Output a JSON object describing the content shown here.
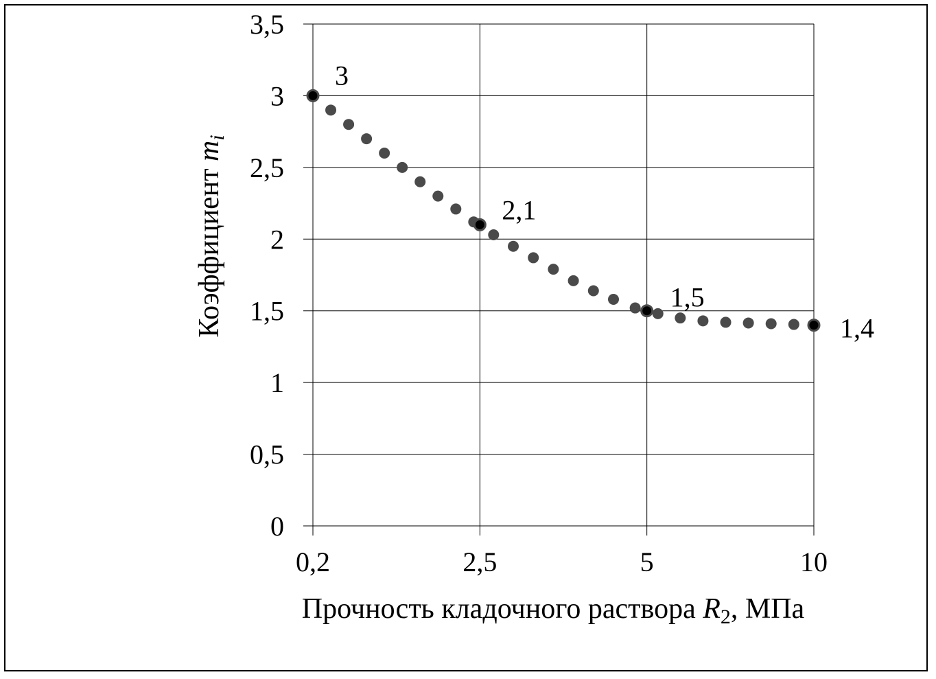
{
  "chart_data": {
    "type": "scatter",
    "x_scale": "categorical-equal-spacing",
    "x_ticks": [
      "0,2",
      "2,5",
      "5",
      "10"
    ],
    "y_ticks": [
      "0",
      "0,5",
      "1",
      "1,5",
      "2",
      "2,5",
      "3",
      "3,5"
    ],
    "ylim": [
      0,
      3.5
    ],
    "grid": true,
    "xlabel": {
      "main": "Прочность кладочного раствора ",
      "var": "R",
      "sub": "2",
      "unit": ",  МПа"
    },
    "ylabel": {
      "main": "Коэффициент  ",
      "var": "m",
      "sub": "i"
    },
    "series_color": "#4a4a4a",
    "key_point_color": "#000000",
    "points": [
      {
        "x": 0.0,
        "y": 3.0
      },
      {
        "x": 0.107,
        "y": 2.9
      },
      {
        "x": 0.214,
        "y": 2.8
      },
      {
        "x": 0.321,
        "y": 2.7
      },
      {
        "x": 0.428,
        "y": 2.6
      },
      {
        "x": 0.535,
        "y": 2.5
      },
      {
        "x": 0.642,
        "y": 2.4
      },
      {
        "x": 0.749,
        "y": 2.3
      },
      {
        "x": 0.856,
        "y": 2.21
      },
      {
        "x": 0.963,
        "y": 2.12
      },
      {
        "x": 1.0,
        "y": 2.1
      },
      {
        "x": 1.082,
        "y": 2.03
      },
      {
        "x": 1.2,
        "y": 1.95
      },
      {
        "x": 1.32,
        "y": 1.87
      },
      {
        "x": 1.44,
        "y": 1.79
      },
      {
        "x": 1.56,
        "y": 1.71
      },
      {
        "x": 1.68,
        "y": 1.64
      },
      {
        "x": 1.8,
        "y": 1.58
      },
      {
        "x": 1.93,
        "y": 1.52
      },
      {
        "x": 2.0,
        "y": 1.5
      },
      {
        "x": 2.066,
        "y": 1.48
      },
      {
        "x": 2.2,
        "y": 1.45
      },
      {
        "x": 2.336,
        "y": 1.43
      },
      {
        "x": 2.472,
        "y": 1.42
      },
      {
        "x": 2.608,
        "y": 1.415
      },
      {
        "x": 2.744,
        "y": 1.41
      },
      {
        "x": 2.88,
        "y": 1.405
      },
      {
        "x": 3.0,
        "y": 1.4
      }
    ],
    "key_points": [
      {
        "x": 0,
        "y": 3.0,
        "label": "3"
      },
      {
        "x": 1,
        "y": 2.1,
        "label": "2,1"
      },
      {
        "x": 2,
        "y": 1.5,
        "label": "1,5"
      },
      {
        "x": 3,
        "y": 1.4,
        "label": "1,4"
      }
    ]
  }
}
